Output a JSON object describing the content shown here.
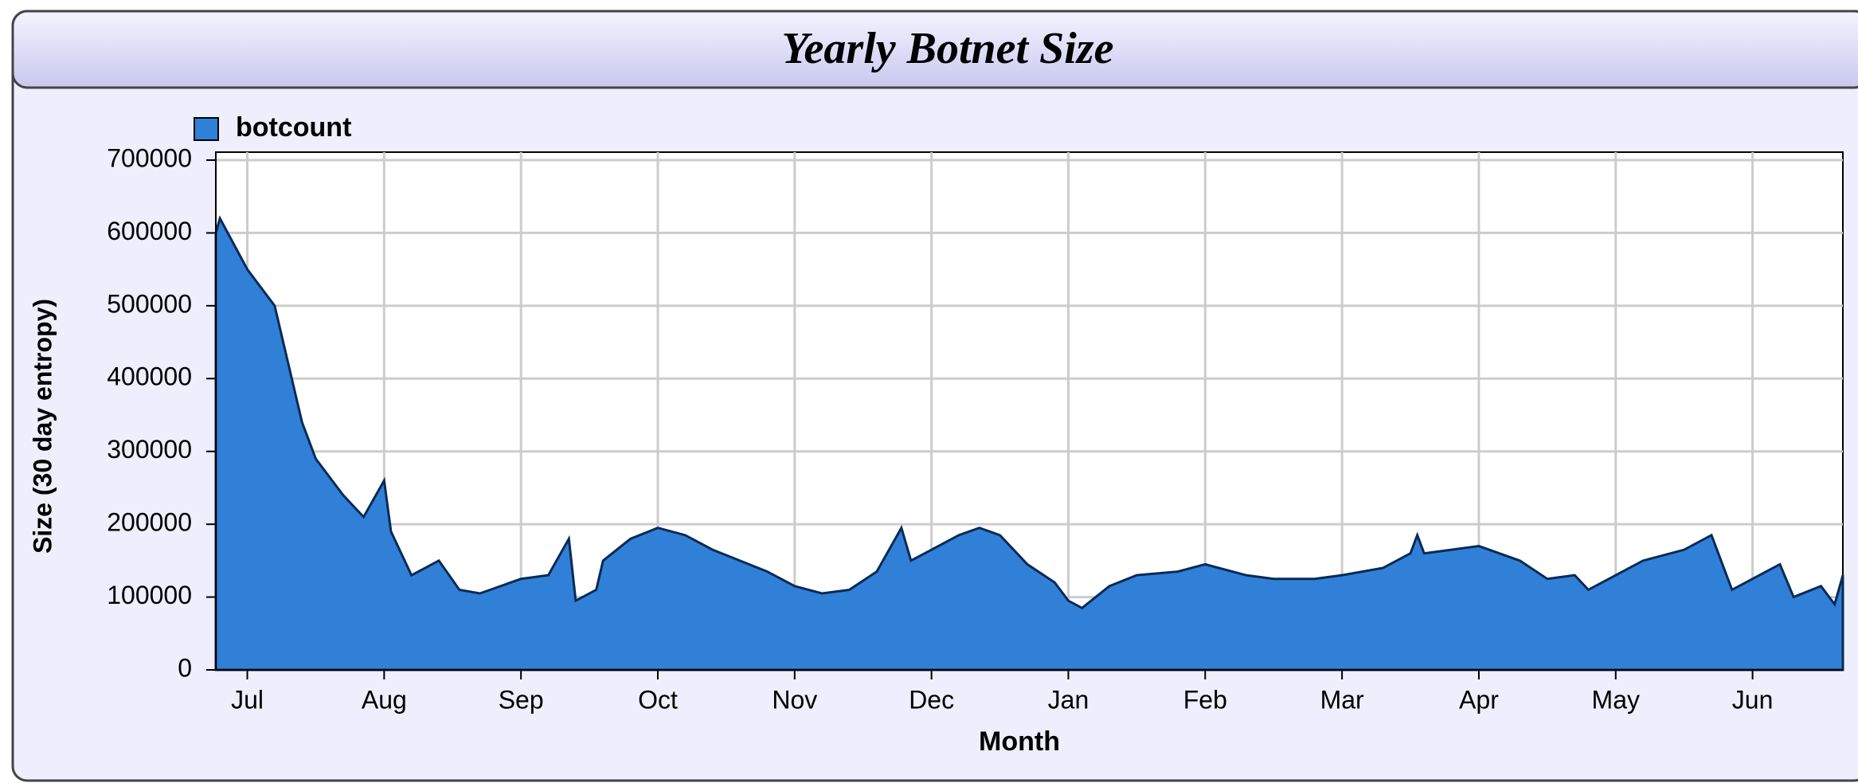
{
  "chart_data": {
    "type": "area",
    "title": "Yearly Botnet Size",
    "xlabel": "Month",
    "ylabel": "Size (30 day entropy)",
    "series": [
      {
        "name": "botcount",
        "color": "#3080d8",
        "x": [
          -0.23,
          -0.2,
          0,
          0.2,
          0.3,
          0.4,
          0.5,
          0.7,
          0.85,
          1.0,
          1.05,
          1.2,
          1.4,
          1.55,
          1.7,
          2.0,
          2.2,
          2.35,
          2.4,
          2.55,
          2.6,
          2.8,
          3.0,
          3.2,
          3.4,
          3.6,
          3.8,
          4.0,
          4.2,
          4.4,
          4.6,
          4.78,
          4.85,
          5.0,
          5.2,
          5.35,
          5.5,
          5.7,
          5.9,
          6.0,
          6.1,
          6.3,
          6.5,
          6.8,
          7.0,
          7.3,
          7.5,
          7.8,
          8.0,
          8.3,
          8.5,
          8.55,
          8.6,
          9.0,
          9.3,
          9.5,
          9.7,
          9.8,
          10.0,
          10.2,
          10.5,
          10.7,
          10.85,
          11.0,
          11.2,
          11.3,
          11.5,
          11.6,
          11.66
        ],
        "values": [
          600000,
          620000,
          550000,
          500000,
          420000,
          340000,
          290000,
          240000,
          210000,
          260000,
          190000,
          130000,
          150000,
          110000,
          105000,
          125000,
          130000,
          180000,
          95000,
          110000,
          150000,
          180000,
          195000,
          185000,
          165000,
          150000,
          135000,
          115000,
          105000,
          110000,
          135000,
          195000,
          150000,
          165000,
          185000,
          195000,
          185000,
          145000,
          120000,
          95000,
          85000,
          115000,
          130000,
          135000,
          145000,
          130000,
          125000,
          125000,
          130000,
          140000,
          160000,
          185000,
          160000,
          170000,
          150000,
          125000,
          130000,
          110000,
          130000,
          150000,
          165000,
          185000,
          110000,
          125000,
          145000,
          100000,
          115000,
          90000,
          130000
        ]
      }
    ],
    "xlim": [
      -0.23,
      11.66
    ],
    "xticks": [
      {
        "value": 0,
        "label": "Jul"
      },
      {
        "value": 1,
        "label": "Aug"
      },
      {
        "value": 2,
        "label": "Sep"
      },
      {
        "value": 3,
        "label": "Oct"
      },
      {
        "value": 4,
        "label": "Nov"
      },
      {
        "value": 5,
        "label": "Dec"
      },
      {
        "value": 6,
        "label": "Jan"
      },
      {
        "value": 7,
        "label": "Feb"
      },
      {
        "value": 8,
        "label": "Mar"
      },
      {
        "value": 9,
        "label": "Apr"
      },
      {
        "value": 10,
        "label": "May"
      },
      {
        "value": 11,
        "label": "Jun"
      }
    ],
    "ylim": [
      0,
      700000
    ],
    "yticks": [
      0,
      100000,
      200000,
      300000,
      400000,
      500000,
      600000,
      700000
    ],
    "grid": true,
    "legend": "top-left"
  }
}
